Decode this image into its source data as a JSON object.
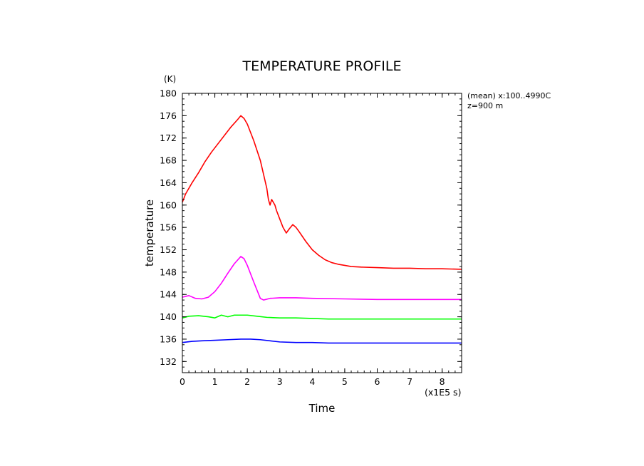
{
  "chart_data": {
    "type": "line",
    "title": "TEMPERATURE PROFILE",
    "xlabel": "Time",
    "ylabel": "temperature",
    "x_unit": "(x1E5 s)",
    "y_unit": "(K)",
    "xlim": [
      0,
      8.6
    ],
    "ylim": [
      130,
      180
    ],
    "x_ticks": [
      "0",
      "1",
      "2",
      "3",
      "4",
      "5",
      "6",
      "7",
      "8"
    ],
    "y_ticks": [
      "132",
      "136",
      "140",
      "144",
      "148",
      "152",
      "156",
      "160",
      "164",
      "168",
      "172",
      "176",
      "180"
    ],
    "grid": false,
    "annotations": [
      "(mean) x:100..4990C",
      "z=900  m"
    ],
    "series": [
      {
        "name": "red",
        "color": "#ff0000",
        "x": [
          0,
          0.1,
          0.3,
          0.5,
          0.7,
          0.9,
          1.1,
          1.3,
          1.5,
          1.7,
          1.8,
          1.9,
          2.0,
          2.2,
          2.4,
          2.5,
          2.6,
          2.65,
          2.7,
          2.75,
          2.8,
          2.85,
          2.9,
          3.0,
          3.1,
          3.2,
          3.3,
          3.4,
          3.5,
          3.6,
          3.8,
          4.0,
          4.2,
          4.4,
          4.6,
          4.8,
          5.0,
          5.2,
          5.5,
          6.0,
          6.5,
          7.0,
          7.5,
          8.0,
          8.6
        ],
        "y": [
          160.5,
          162,
          164,
          165.8,
          167.8,
          169.5,
          171,
          172.5,
          174,
          175.3,
          176,
          175.5,
          174.5,
          171.5,
          168,
          165.5,
          163,
          161,
          160,
          161,
          160.5,
          160,
          159,
          157.5,
          156,
          155,
          155.8,
          156.5,
          156,
          155.2,
          153.5,
          152,
          151,
          150.2,
          149.7,
          149.4,
          149.2,
          149,
          148.9,
          148.8,
          148.7,
          148.7,
          148.6,
          148.6,
          148.5
        ]
      },
      {
        "name": "magenta",
        "color": "#ff00ff",
        "x": [
          0,
          0.2,
          0.4,
          0.6,
          0.8,
          1.0,
          1.2,
          1.4,
          1.6,
          1.8,
          1.9,
          2.0,
          2.2,
          2.4,
          2.5,
          2.7,
          3.0,
          3.5,
          4.0,
          5.0,
          6.0,
          7.0,
          8.0,
          8.6
        ],
        "y": [
          143.5,
          143.8,
          143.3,
          143.2,
          143.5,
          144.5,
          146,
          147.8,
          149.5,
          150.8,
          150.4,
          149.2,
          146.2,
          143.3,
          143,
          143.3,
          143.4,
          143.4,
          143.3,
          143.2,
          143.1,
          143.1,
          143.1,
          143.1
        ]
      },
      {
        "name": "green",
        "color": "#00ff00",
        "x": [
          0,
          0.2,
          0.5,
          0.8,
          1.0,
          1.2,
          1.4,
          1.6,
          1.8,
          2.0,
          2.3,
          2.6,
          3.0,
          3.5,
          4.0,
          4.5,
          5.0,
          6.0,
          7.0,
          8.0,
          8.6
        ],
        "y": [
          139.8,
          140.1,
          140.2,
          140.0,
          139.8,
          140.3,
          140.0,
          140.3,
          140.3,
          140.3,
          140.1,
          139.9,
          139.8,
          139.8,
          139.7,
          139.6,
          139.6,
          139.6,
          139.6,
          139.6,
          139.6
        ]
      },
      {
        "name": "blue",
        "color": "#0000ff",
        "x": [
          0,
          0.3,
          0.6,
          1.0,
          1.4,
          1.8,
          2.1,
          2.4,
          2.7,
          3.0,
          3.5,
          4.0,
          4.5,
          5.0,
          6.0,
          7.0,
          8.0,
          8.6
        ],
        "y": [
          135.4,
          135.6,
          135.7,
          135.8,
          135.9,
          136.0,
          136.0,
          135.9,
          135.7,
          135.5,
          135.4,
          135.4,
          135.3,
          135.3,
          135.3,
          135.3,
          135.3,
          135.3
        ]
      }
    ]
  }
}
